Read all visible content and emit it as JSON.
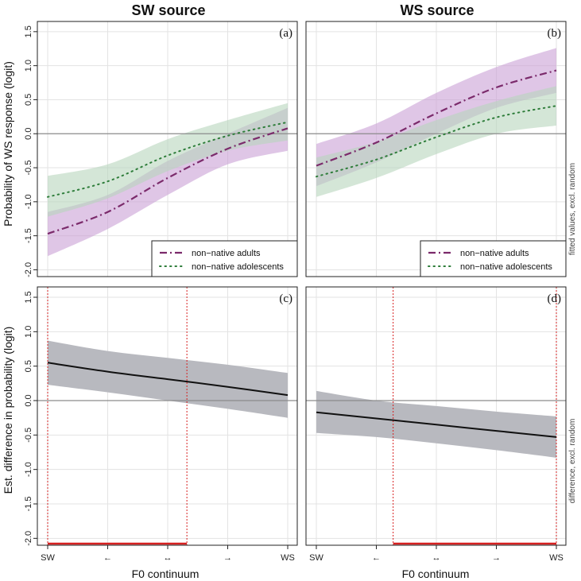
{
  "column_titles": [
    "SW source",
    "WS source"
  ],
  "y_titles": [
    "Probability of WS response (logit)",
    "Est. difference in probability (logit)"
  ],
  "side_notes": [
    "fitted values, excl. random",
    "difference, excl. random"
  ],
  "x_title": "F0 continuum",
  "colors": {
    "adults": "#7b2a6b",
    "adolescents": "#2e7d3a",
    "adults_band": "#c9a0d6",
    "adolescents_band": "#b8d6bc",
    "overlap_band": "#b7a8ae",
    "diff_band": "#b8b9bf",
    "diff_line": "#111111",
    "zero_line": "#8c8c8c",
    "marker": "#d62020",
    "grid": "#e3e3e3"
  },
  "chart_data": [
    {
      "type": "line",
      "panel_label": "(a)",
      "title": "SW source",
      "xlabel": "",
      "ylabel": "Probability of WS response (logit)",
      "x_ticks": [
        "SW",
        "←",
        "↔",
        "→",
        "WS"
      ],
      "x": [
        0,
        0.25,
        0.5,
        0.75,
        1
      ],
      "ylim": [
        -2.1,
        1.65
      ],
      "y_ticks": [
        -2.0,
        -1.5,
        -1.0,
        -0.5,
        0.0,
        0.5,
        1.0,
        1.5
      ],
      "legend": {
        "entries": [
          "non−native adults",
          "non−native adolescents"
        ],
        "placement": "bottom-right"
      },
      "series": [
        {
          "name": "non−native adults",
          "style": "dashdot",
          "values": [
            -1.47,
            -1.15,
            -0.65,
            -0.22,
            0.08
          ],
          "lower": [
            -1.8,
            -1.4,
            -0.9,
            -0.45,
            -0.25
          ],
          "upper": [
            -1.15,
            -0.9,
            -0.4,
            0.0,
            0.38
          ]
        },
        {
          "name": "non−native adolescents",
          "style": "dotted",
          "values": [
            -0.93,
            -0.7,
            -0.32,
            -0.03,
            0.17
          ],
          "lower": [
            -1.22,
            -0.95,
            -0.55,
            -0.25,
            -0.1
          ],
          "upper": [
            -0.62,
            -0.45,
            -0.08,
            0.2,
            0.45
          ]
        }
      ],
      "hlines": [
        0
      ]
    },
    {
      "type": "line",
      "panel_label": "(b)",
      "title": "WS source",
      "xlabel": "",
      "ylabel": "",
      "x_ticks": [
        "SW",
        "←",
        "↔",
        "→",
        "WS"
      ],
      "x": [
        0,
        0.25,
        0.5,
        0.75,
        1
      ],
      "ylim": [
        -2.1,
        1.65
      ],
      "y_ticks": [
        -2.0,
        -1.5,
        -1.0,
        -0.5,
        0.0,
        0.5,
        1.0,
        1.5
      ],
      "legend": {
        "entries": [
          "non−native adults",
          "non−native adolescents"
        ],
        "placement": "bottom-right"
      },
      "series": [
        {
          "name": "non−native adults",
          "style": "dashdot",
          "values": [
            -0.47,
            -0.13,
            0.3,
            0.68,
            0.93
          ],
          "lower": [
            -0.77,
            -0.42,
            0.0,
            0.38,
            0.6
          ],
          "upper": [
            -0.15,
            0.15,
            0.6,
            0.98,
            1.26
          ]
        },
        {
          "name": "non−native adolescents",
          "style": "dotted",
          "values": [
            -0.63,
            -0.38,
            -0.05,
            0.24,
            0.41
          ],
          "lower": [
            -0.93,
            -0.65,
            -0.3,
            0.0,
            0.12
          ],
          "upper": [
            -0.35,
            -0.12,
            0.2,
            0.48,
            0.7
          ]
        }
      ],
      "hlines": [
        0
      ]
    },
    {
      "type": "line",
      "panel_label": "(c)",
      "title": "",
      "xlabel": "F0 continuum",
      "ylabel": "Est. difference in probability (logit)",
      "x_ticks": [
        "SW",
        "←",
        "↔",
        "→",
        "WS"
      ],
      "x": [
        0,
        0.25,
        0.5,
        0.75,
        1
      ],
      "ylim": [
        -2.1,
        1.65
      ],
      "y_ticks": [
        -2.0,
        -1.5,
        -1.0,
        -0.5,
        0.0,
        0.5,
        1.0,
        1.5
      ],
      "series": [
        {
          "name": "difference",
          "style": "solid",
          "values": [
            0.55,
            0.42,
            0.31,
            0.2,
            0.08
          ],
          "lower": [
            0.23,
            0.12,
            0.0,
            -0.12,
            -0.25
          ],
          "upper": [
            0.87,
            0.72,
            0.62,
            0.52,
            0.4
          ]
        }
      ],
      "hlines": [
        0
      ],
      "significant_region": [
        0,
        0.58
      ]
    },
    {
      "type": "line",
      "panel_label": "(d)",
      "title": "",
      "xlabel": "F0 continuum",
      "ylabel": "",
      "x_ticks": [
        "SW",
        "←",
        "↔",
        "→",
        "WS"
      ],
      "x": [
        0,
        0.25,
        0.5,
        0.75,
        1
      ],
      "ylim": [
        -2.1,
        1.65
      ],
      "y_ticks": [
        -2.0,
        -1.5,
        -1.0,
        -0.5,
        0.0,
        0.5,
        1.0,
        1.5
      ],
      "series": [
        {
          "name": "difference",
          "style": "solid",
          "values": [
            -0.17,
            -0.26,
            -0.35,
            -0.44,
            -0.53
          ],
          "lower": [
            -0.47,
            -0.53,
            -0.62,
            -0.72,
            -0.83
          ],
          "upper": [
            0.14,
            0.0,
            -0.08,
            -0.16,
            -0.23
          ]
        }
      ],
      "hlines": [
        0
      ],
      "significant_region": [
        0.32,
        1
      ]
    }
  ]
}
